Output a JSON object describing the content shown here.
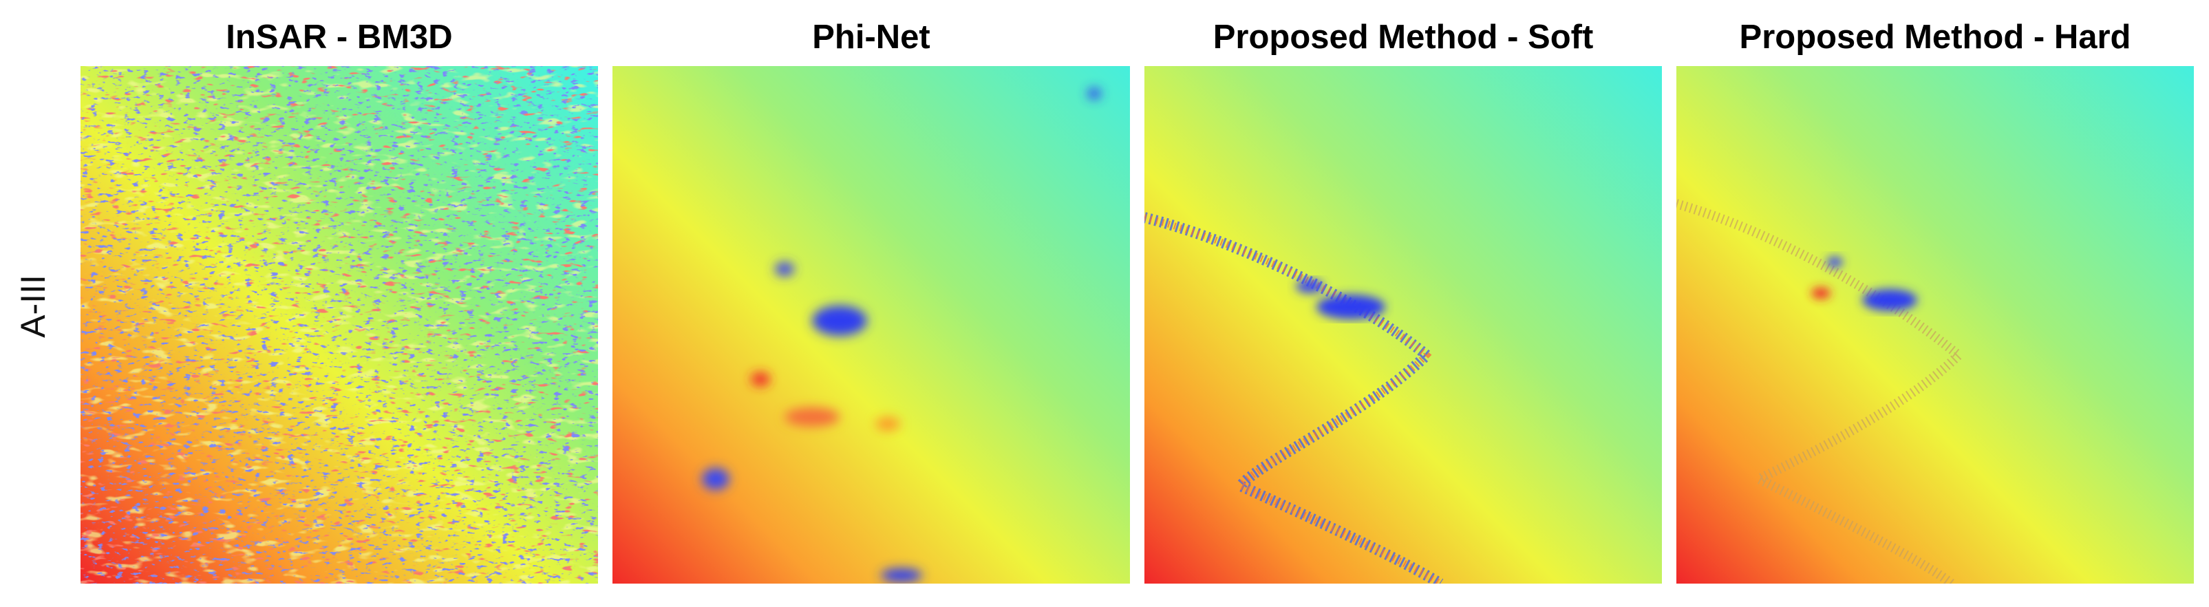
{
  "row_label": "A-III",
  "panels": [
    {
      "title": "InSAR - BM3D"
    },
    {
      "title": "Phi-Net"
    },
    {
      "title": "Proposed Method - Soft"
    },
    {
      "title": "Proposed Method - Hard"
    }
  ],
  "colors": {
    "cyan": "#3ff2e6",
    "green": "#8ef07a",
    "yellow": "#ecf53a",
    "orange": "#fb9a2c",
    "red": "#f0262a",
    "blue": "#2f3cf0"
  }
}
